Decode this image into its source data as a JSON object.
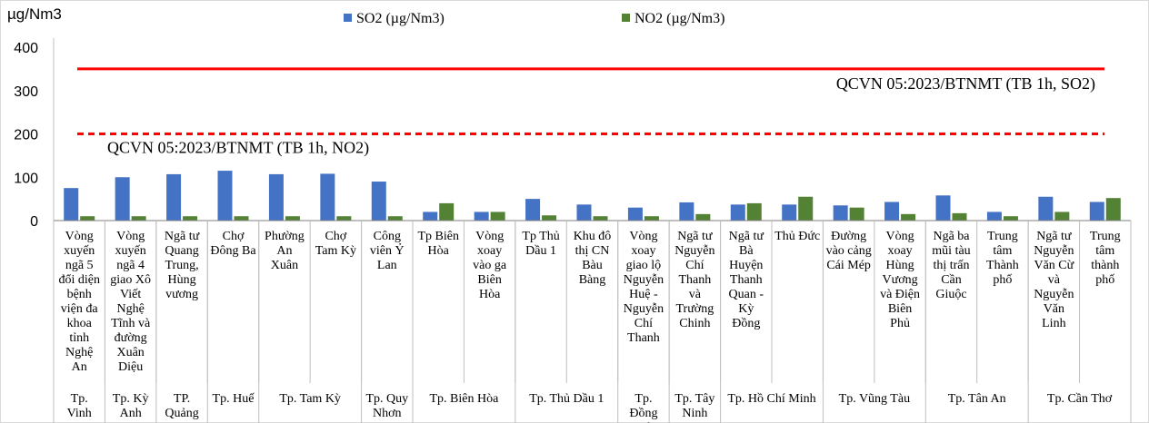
{
  "chart_data": {
    "type": "bar",
    "ylabel": "µg/Nm3",
    "ylim": [
      0,
      400
    ],
    "yticks": [
      0,
      100,
      200,
      300,
      400
    ],
    "grid": false,
    "legend_position": "top",
    "series": [
      {
        "name": "SO2 (µg/Nm3)",
        "color": "#4472c4",
        "values": [
          75,
          100,
          107,
          115,
          107,
          108,
          90,
          20,
          20,
          50,
          37,
          30,
          42,
          37,
          37,
          35,
          43,
          58,
          20,
          55,
          43
        ]
      },
      {
        "name": "NO2  (µg/Nm3)",
        "color": "#548235",
        "values": [
          10,
          10,
          10,
          10,
          10,
          10,
          10,
          40,
          20,
          12,
          10,
          10,
          15,
          40,
          55,
          30,
          15,
          17,
          10,
          20,
          52
        ]
      }
    ],
    "categories": [
      "Vòng xuyến ngã 5 đổi diện bệnh viện đa khoa tỉnh Nghệ An",
      "Vòng xuyến ngã 4 giao Xô Viết Nghệ Tĩnh và đường Xuân Diệu",
      "Ngã tư Quang Trung, Hùng vương",
      "Chợ Đông Ba",
      "Phường An Xuân",
      "Chợ Tam Kỳ",
      "Công viên Ỷ Lan",
      "Tp Biên Hòa",
      "Vòng xoay vào ga Biên Hòa",
      "Tp Thủ Dầu 1",
      "Khu đô thị CN Bàu Bàng",
      "Vòng xoay giao lộ Nguyễn Huệ - Nguyễn Chí Thanh",
      "Ngã tư Nguyễn Chí Thanh và Trường Chinh",
      "Ngã tư Bà Huyện Thanh Quan - Kỳ Đồng",
      "Thủ Đức",
      "Đường vào cảng Cái Mép",
      "Vòng xoay Hùng Vương và Điện Biên Phủ",
      "Ngã ba mũi tàu thị trấn Cần Giuộc",
      "Trung tâm Thành phố",
      "Ngã tư Nguyễn Văn Cừ và Nguyễn Văn Linh",
      "Trung tâm thành phố"
    ],
    "groups": [
      {
        "label": "Tp. Vinh",
        "count": 1
      },
      {
        "label": "Tp. Kỳ Anh",
        "count": 1
      },
      {
        "label": "TP. Quảng",
        "count": 1
      },
      {
        "label": "Tp. Huế",
        "count": 1
      },
      {
        "label": "Tp. Tam Kỳ",
        "count": 2
      },
      {
        "label": "Tp. Quy Nhơn",
        "count": 1
      },
      {
        "label": "Tp. Biên Hòa",
        "count": 2
      },
      {
        "label": "Tp. Thủ Dầu 1",
        "count": 2
      },
      {
        "label": "Tp. Đồng Xoài",
        "count": 1
      },
      {
        "label": "Tp. Tây Ninh",
        "count": 1
      },
      {
        "label": "Tp. Hồ Chí Minh",
        "count": 2
      },
      {
        "label": "Tp. Vũng Tàu",
        "count": 2
      },
      {
        "label": "Tp. Tân An",
        "count": 2
      },
      {
        "label": "Tp. Cần Thơ",
        "count": 2
      }
    ],
    "reference_lines": [
      {
        "label": "QCVN 05:2023/BTNMT (TB 1h, SO2)",
        "value": 350,
        "style": "solid",
        "color": "#ff0000"
      },
      {
        "label": "QCVN 05:2023/BTNMT (TB 1h, NO2)",
        "value": 200,
        "style": "dashed",
        "color": "#ff0000"
      }
    ]
  }
}
